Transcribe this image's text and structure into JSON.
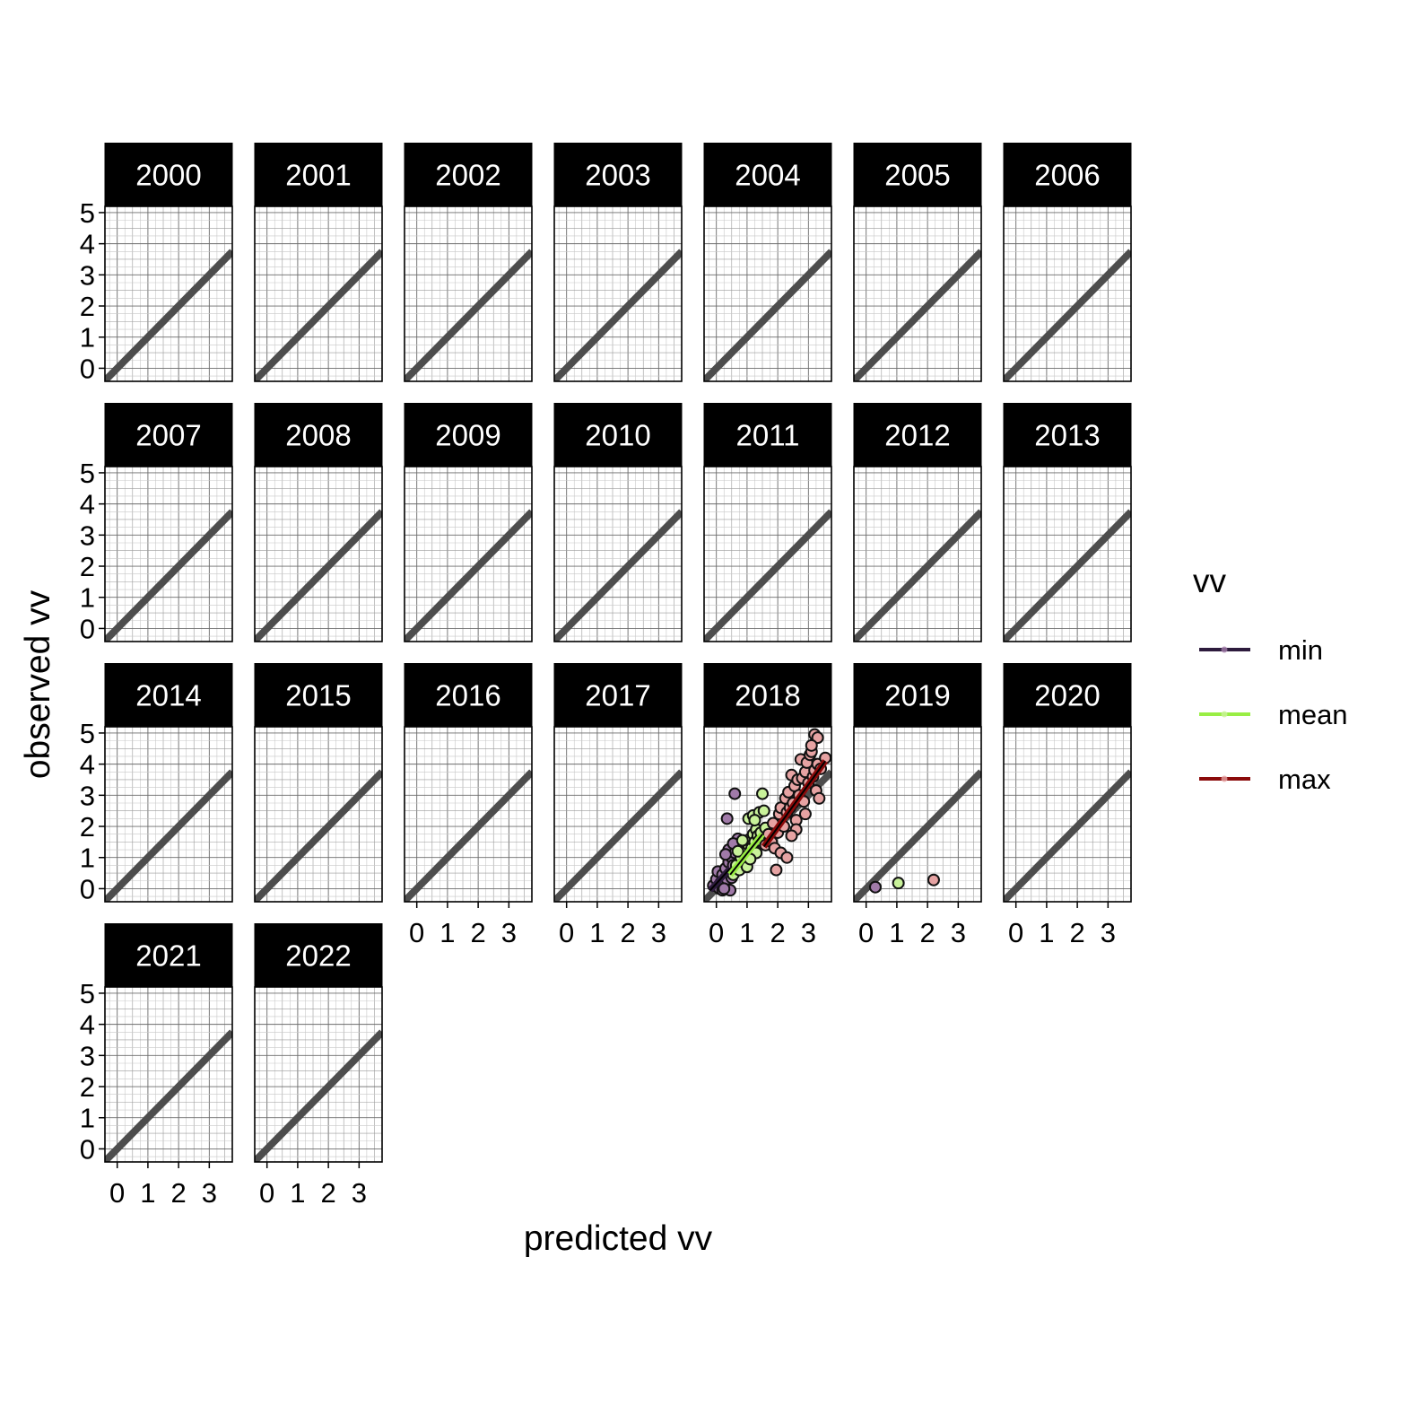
{
  "chart_data": {
    "type": "scatter",
    "layout": "faceted small multiples (4 rows x 7 columns)",
    "xlabel": "predicted vv",
    "ylabel": "observed vv",
    "x_ticks": [
      0,
      1,
      2,
      3
    ],
    "y_ticks": [
      0,
      1,
      2,
      3,
      4,
      5
    ],
    "xlim": [
      -0.4,
      3.75
    ],
    "ylim": [
      -0.42,
      5.2
    ],
    "grid": true,
    "minor_grid": true,
    "reference_line": {
      "description": "1:1 line",
      "slope": 1,
      "intercept": 0,
      "color": "#4d4d4d"
    },
    "legend": {
      "title": "vv",
      "placement": "right",
      "entries": [
        {
          "label": "min",
          "color": "#2d1b3d"
        },
        {
          "label": "mean",
          "color": "#99ee44"
        },
        {
          "label": "max",
          "color": "#8b0a0a"
        }
      ]
    },
    "panels": [
      "2000",
      "2001",
      "2002",
      "2003",
      "2004",
      "2005",
      "2006",
      "2007",
      "2008",
      "2009",
      "2010",
      "2011",
      "2012",
      "2013",
      "2014",
      "2015",
      "2016",
      "2017",
      "2018",
      "2019",
      "2020",
      "2021",
      "2022"
    ],
    "panels_with_data": {
      "2018": {
        "fits": [
          {
            "series": "min",
            "x": [
              -0.2,
              0.45
            ],
            "y": [
              -0.05,
              0.65
            ]
          },
          {
            "series": "mean",
            "x": [
              0.45,
              1.5
            ],
            "y": [
              0.45,
              1.75
            ]
          },
          {
            "series": "max",
            "x": [
              1.55,
              3.55
            ],
            "y": [
              1.35,
              4.1
            ]
          }
        ],
        "series": [
          {
            "name": "min",
            "points": [
              [
                -0.1,
                0.1
              ],
              [
                0.0,
                0.3
              ],
              [
                0.05,
                0.55
              ],
              [
                0.1,
                0.0
              ],
              [
                0.15,
                0.2
              ],
              [
                0.2,
                0.45
              ],
              [
                0.25,
                0.1
              ],
              [
                0.3,
                0.65
              ],
              [
                0.35,
                0.3
              ],
              [
                0.4,
                0.85
              ],
              [
                0.45,
                0.5
              ],
              [
                0.5,
                1.0
              ],
              [
                0.4,
                1.25
              ],
              [
                0.55,
                0.75
              ],
              [
                0.6,
                1.15
              ],
              [
                0.35,
                2.25
              ],
              [
                0.6,
                3.05
              ],
              [
                0.7,
                1.6
              ],
              [
                0.2,
                -0.05
              ],
              [
                0.45,
                -0.05
              ],
              [
                0.5,
                0.35
              ],
              [
                0.6,
                0.55
              ],
              [
                0.3,
                1.1
              ],
              [
                0.25,
                0.0
              ],
              [
                0.55,
                1.45
              ]
            ]
          },
          {
            "name": "mean",
            "points": [
              [
                0.55,
                0.45
              ],
              [
                0.65,
                0.75
              ],
              [
                0.75,
                0.6
              ],
              [
                0.8,
                1.0
              ],
              [
                0.9,
                0.85
              ],
              [
                0.95,
                1.2
              ],
              [
                1.0,
                1.05
              ],
              [
                1.05,
                1.4
              ],
              [
                1.1,
                1.6
              ],
              [
                1.15,
                1.3
              ],
              [
                1.2,
                1.75
              ],
              [
                1.25,
                1.5
              ],
              [
                1.3,
                1.9
              ],
              [
                1.35,
                1.7
              ],
              [
                1.4,
                1.55
              ],
              [
                1.45,
                1.8
              ],
              [
                1.05,
                2.25
              ],
              [
                1.2,
                2.35
              ],
              [
                1.4,
                2.45
              ],
              [
                1.55,
                2.5
              ],
              [
                1.5,
                3.05
              ],
              [
                0.85,
                1.55
              ],
              [
                1.0,
                0.7
              ],
              [
                1.3,
                1.15
              ],
              [
                1.1,
                0.95
              ],
              [
                0.7,
                1.2
              ],
              [
                1.25,
                2.2
              ],
              [
                1.6,
                1.95
              ]
            ]
          },
          {
            "name": "max",
            "points": [
              [
                1.6,
                1.4
              ],
              [
                1.7,
                1.75
              ],
              [
                1.8,
                1.5
              ],
              [
                1.85,
                2.1
              ],
              [
                1.9,
                1.3
              ],
              [
                1.95,
                0.6
              ],
              [
                2.0,
                1.8
              ],
              [
                2.05,
                2.4
              ],
              [
                2.1,
                1.15
              ],
              [
                2.1,
                2.6
              ],
              [
                2.2,
                2.0
              ],
              [
                2.25,
                2.9
              ],
              [
                2.3,
                1.0
              ],
              [
                2.3,
                2.45
              ],
              [
                2.35,
                3.1
              ],
              [
                2.4,
                2.6
              ],
              [
                2.45,
                3.65
              ],
              [
                2.5,
                2.75
              ],
              [
                2.55,
                3.3
              ],
              [
                2.6,
                2.2
              ],
              [
                2.65,
                3.5
              ],
              [
                2.7,
                3.0
              ],
              [
                2.75,
                4.15
              ],
              [
                2.8,
                3.55
              ],
              [
                2.85,
                2.8
              ],
              [
                2.9,
                3.75
              ],
              [
                2.95,
                4.05
              ],
              [
                3.0,
                3.4
              ],
              [
                3.05,
                4.3
              ],
              [
                3.1,
                4.4
              ],
              [
                3.15,
                3.6
              ],
              [
                3.2,
                3.8
              ],
              [
                3.25,
                3.15
              ],
              [
                3.3,
                4.0
              ],
              [
                3.35,
                2.9
              ],
              [
                3.4,
                3.85
              ],
              [
                3.55,
                4.2
              ],
              [
                3.2,
                4.95
              ],
              [
                3.3,
                4.85
              ],
              [
                2.9,
                2.4
              ],
              [
                2.6,
                1.9
              ],
              [
                2.45,
                1.7
              ],
              [
                3.1,
                4.6
              ]
            ]
          }
        ]
      },
      "2019": {
        "series": [
          {
            "name": "min",
            "points": [
              [
                0.3,
                0.05
              ]
            ]
          },
          {
            "name": "mean",
            "points": [
              [
                1.05,
                0.18
              ]
            ]
          },
          {
            "name": "max",
            "points": [
              [
                2.2,
                0.28
              ]
            ]
          }
        ]
      }
    }
  }
}
